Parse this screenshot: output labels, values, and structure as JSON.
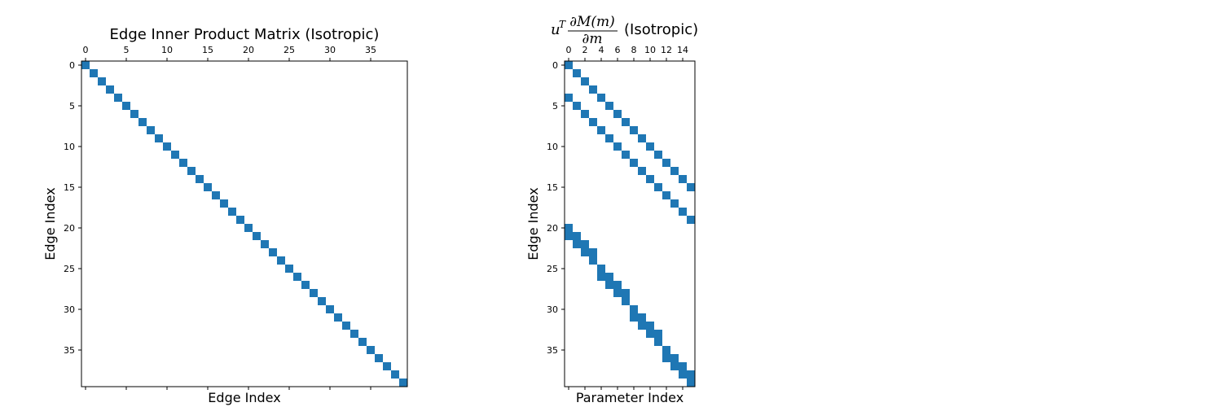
{
  "chart_data": [
    {
      "type": "heatmap",
      "title": "Edge Inner Product Matrix (Isotropic)",
      "xlabel": "Edge Index",
      "ylabel": "Edge Index",
      "n_rows": 40,
      "n_cols": 40,
      "x_ticks": [
        0,
        5,
        10,
        15,
        20,
        25,
        30,
        35
      ],
      "y_ticks": [
        0,
        5,
        10,
        15,
        20,
        25,
        30,
        35
      ],
      "color": "#1f77b4",
      "nonzero": [
        [
          0,
          0
        ],
        [
          1,
          1
        ],
        [
          2,
          2
        ],
        [
          3,
          3
        ],
        [
          4,
          4
        ],
        [
          5,
          5
        ],
        [
          6,
          6
        ],
        [
          7,
          7
        ],
        [
          8,
          8
        ],
        [
          9,
          9
        ],
        [
          10,
          10
        ],
        [
          11,
          11
        ],
        [
          12,
          12
        ],
        [
          13,
          13
        ],
        [
          14,
          14
        ],
        [
          15,
          15
        ],
        [
          16,
          16
        ],
        [
          17,
          17
        ],
        [
          18,
          18
        ],
        [
          19,
          19
        ],
        [
          20,
          20
        ],
        [
          21,
          21
        ],
        [
          22,
          22
        ],
        [
          23,
          23
        ],
        [
          24,
          24
        ],
        [
          25,
          25
        ],
        [
          26,
          26
        ],
        [
          27,
          27
        ],
        [
          28,
          28
        ],
        [
          29,
          29
        ],
        [
          30,
          30
        ],
        [
          31,
          31
        ],
        [
          32,
          32
        ],
        [
          33,
          33
        ],
        [
          34,
          34
        ],
        [
          35,
          35
        ],
        [
          36,
          36
        ],
        [
          37,
          37
        ],
        [
          38,
          38
        ],
        [
          39,
          39
        ]
      ]
    },
    {
      "type": "heatmap",
      "title_math": "u^T ∂M(m)/∂m",
      "title_suffix": "(Isotropic)",
      "xlabel": "Parameter Index",
      "ylabel": "Edge Index",
      "n_rows": 40,
      "n_cols": 16,
      "x_ticks": [
        0,
        2,
        4,
        6,
        8,
        10,
        12,
        14
      ],
      "y_ticks": [
        0,
        5,
        10,
        15,
        20,
        25,
        30,
        35
      ],
      "color": "#1f77b4",
      "nonzero": [
        [
          0,
          0
        ],
        [
          1,
          1
        ],
        [
          2,
          2
        ],
        [
          3,
          3
        ],
        [
          4,
          4
        ],
        [
          5,
          5
        ],
        [
          6,
          6
        ],
        [
          7,
          7
        ],
        [
          8,
          8
        ],
        [
          9,
          9
        ],
        [
          10,
          10
        ],
        [
          11,
          11
        ],
        [
          12,
          12
        ],
        [
          13,
          13
        ],
        [
          14,
          14
        ],
        [
          15,
          15
        ],
        [
          4,
          0
        ],
        [
          5,
          1
        ],
        [
          6,
          2
        ],
        [
          7,
          3
        ],
        [
          8,
          4
        ],
        [
          9,
          5
        ],
        [
          10,
          6
        ],
        [
          11,
          7
        ],
        [
          12,
          8
        ],
        [
          13,
          9
        ],
        [
          14,
          10
        ],
        [
          15,
          11
        ],
        [
          16,
          12
        ],
        [
          17,
          13
        ],
        [
          18,
          14
        ],
        [
          19,
          15
        ],
        [
          20,
          0
        ],
        [
          21,
          0
        ],
        [
          21,
          1
        ],
        [
          22,
          1
        ],
        [
          22,
          2
        ],
        [
          23,
          2
        ],
        [
          23,
          3
        ],
        [
          24,
          3
        ],
        [
          25,
          4
        ],
        [
          26,
          4
        ],
        [
          26,
          5
        ],
        [
          27,
          5
        ],
        [
          27,
          6
        ],
        [
          28,
          6
        ],
        [
          28,
          7
        ],
        [
          29,
          7
        ],
        [
          30,
          8
        ],
        [
          31,
          8
        ],
        [
          31,
          9
        ],
        [
          32,
          9
        ],
        [
          32,
          10
        ],
        [
          33,
          10
        ],
        [
          33,
          11
        ],
        [
          34,
          11
        ],
        [
          35,
          12
        ],
        [
          36,
          12
        ],
        [
          36,
          13
        ],
        [
          37,
          13
        ],
        [
          37,
          14
        ],
        [
          38,
          14
        ],
        [
          38,
          15
        ],
        [
          39,
          15
        ]
      ]
    }
  ]
}
